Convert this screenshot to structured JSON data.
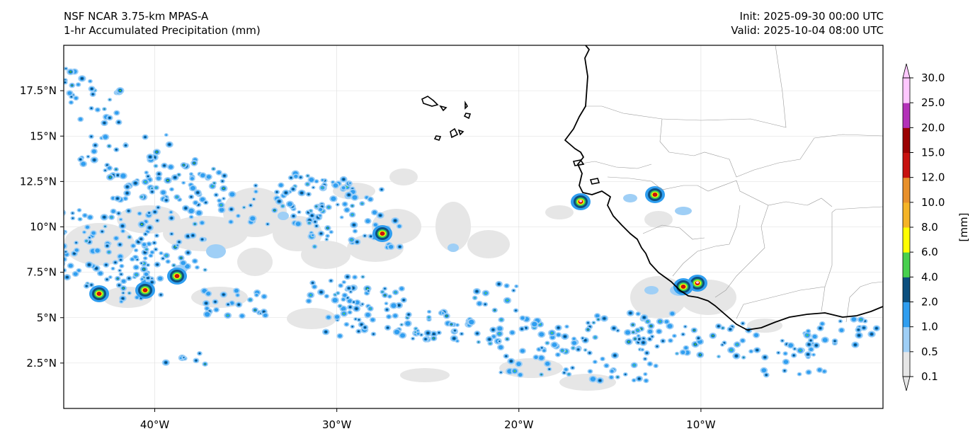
{
  "header": {
    "model": "NSF NCAR 3.75-km MPAS-A",
    "field": "1-hr Accumulated Precipitation (mm)",
    "init": "Init: 2025-09-30 00:00 UTC",
    "valid": "Valid: 2025-10-04 08:00 UTC"
  },
  "map": {
    "projection": "PlateCarree",
    "lon_range": [
      -45,
      0
    ],
    "lat_range": [
      0,
      20
    ],
    "gridlines": true,
    "lat_ticks": [
      {
        "value": 2.5,
        "label": "2.5°N"
      },
      {
        "value": 5,
        "label": "5°N"
      },
      {
        "value": 7.5,
        "label": "7.5°N"
      },
      {
        "value": 10,
        "label": "10°N"
      },
      {
        "value": 12.5,
        "label": "12.5°N"
      },
      {
        "value": 15,
        "label": "15°N"
      },
      {
        "value": 17.5,
        "label": "17.5°N"
      }
    ],
    "lon_ticks": [
      {
        "value": -40,
        "label": "40°W"
      },
      {
        "value": -30,
        "label": "30°W"
      },
      {
        "value": -20,
        "label": "20°W"
      },
      {
        "value": -10,
        "label": "10°W"
      }
    ]
  },
  "colorbar": {
    "label": "[mm]",
    "extend": "both",
    "levels": [
      "0.1",
      "0.5",
      "1.0",
      "2.0",
      "4.0",
      "6.0",
      "8.0",
      "10.0",
      "12.0",
      "15.0",
      "20.0",
      "25.0",
      "30.0"
    ],
    "colors": [
      "#e6e6e6",
      "#9fcff6",
      "#2f9ef0",
      "#0c4f7e",
      "#48d04e",
      "#ffff00",
      "#f5b426",
      "#e8902a",
      "#c8120f",
      "#9b0202",
      "#b331b8",
      "#ffc8ff"
    ]
  }
}
